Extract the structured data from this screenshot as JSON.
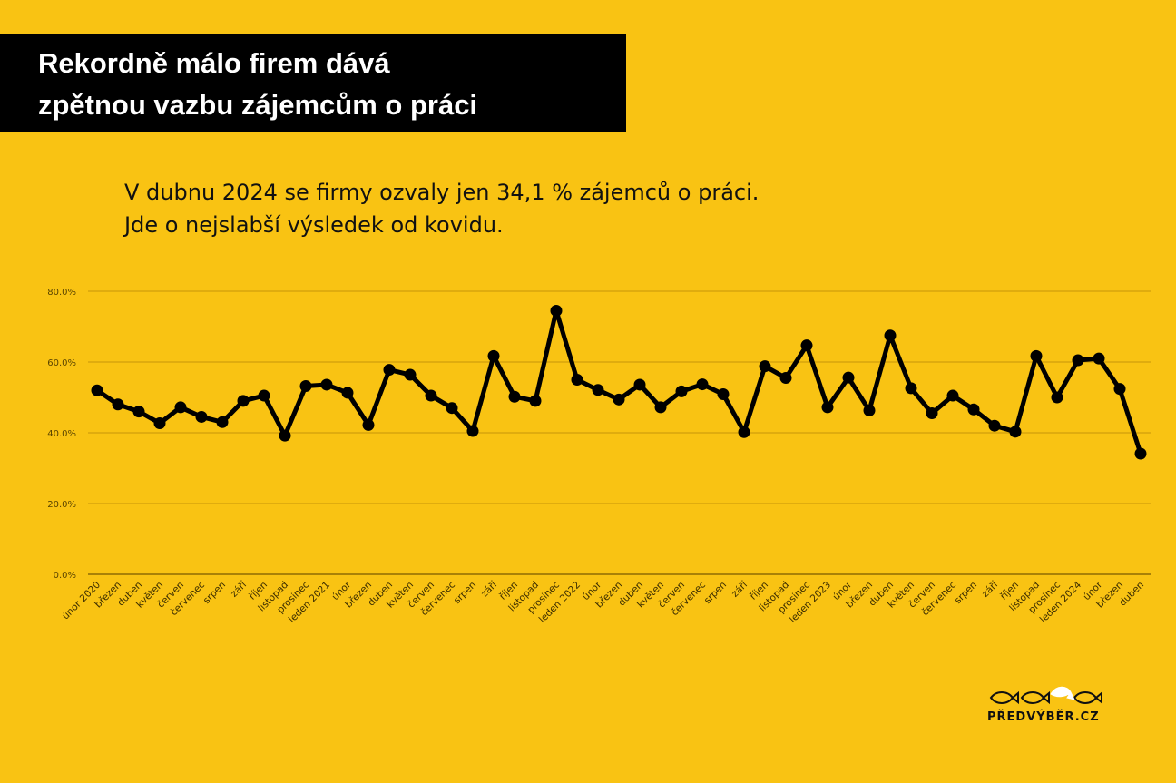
{
  "header": {
    "title_line1": "Rekordně málo firem dává",
    "title_line2": "zpětnou vazbu zájemcům o práci"
  },
  "subtitle": {
    "line1": "V dubnu 2024 se firmy ozvaly jen 34,1 % zájemců o práci.",
    "line2": "Jde o nejslabší výsledek od kovidu."
  },
  "logo": {
    "text": "PŘEDVÝBĚR.CZ",
    "icon": "fish-icons"
  },
  "colors": {
    "background": "#F9C313",
    "line": "#000000",
    "grid": "#C8960A",
    "title_bg": "#000000",
    "title_text": "#FFFFFF"
  },
  "chart_data": {
    "type": "line",
    "title": "",
    "xlabel": "",
    "ylabel": "",
    "ylim": [
      0,
      80
    ],
    "yticks": [
      "0.0%",
      "20.0%",
      "40.0%",
      "60.0%",
      "80.0%"
    ],
    "grid": true,
    "categories": [
      "únor 2020",
      "březen",
      "duben",
      "květen",
      "červen",
      "červenec",
      "srpen",
      "září",
      "říjen",
      "listopad",
      "prosinec",
      "leden 2021",
      "únor",
      "březen",
      "duben",
      "květen",
      "červen",
      "červenec",
      "srpen",
      "září",
      "říjen",
      "listopad",
      "prosinec",
      "leden 2022",
      "únor",
      "březen",
      "duben",
      "květen",
      "červen",
      "červenec",
      "srpen",
      "září",
      "říjen",
      "listopad",
      "prosinec",
      "leden 2023",
      "únor",
      "březen",
      "duben",
      "květen",
      "červen",
      "červenec",
      "srpen",
      "září",
      "říjen",
      "listopad",
      "prosinec",
      "leden 2024",
      "únor",
      "březen",
      "duben"
    ],
    "series": [
      {
        "values": [
          52.0,
          48.0,
          46.0,
          42.7,
          47.2,
          44.5,
          43.0,
          49.0,
          50.5,
          39.2,
          53.2,
          53.6,
          51.3,
          42.2,
          57.8,
          56.4,
          50.5,
          47.0,
          40.5,
          61.7,
          50.2,
          49.0,
          74.5,
          55.0,
          52.1,
          49.4,
          53.6,
          47.2,
          51.7,
          53.7,
          50.9,
          40.2,
          58.8,
          55.5,
          64.7,
          47.2,
          55.6,
          46.3,
          67.5,
          52.6,
          45.5,
          50.5,
          46.6,
          42.0,
          40.3,
          61.7,
          50.0,
          60.5,
          61.0,
          52.4,
          34.1
        ]
      }
    ]
  }
}
